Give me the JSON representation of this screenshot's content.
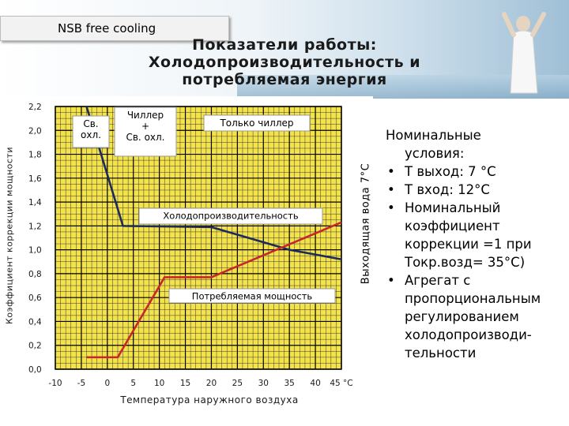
{
  "tab": {
    "label": "NSB free cooling"
  },
  "title": {
    "line1": "Показатели работы:",
    "line2": "Холодопроизводительность и",
    "line3": "потребляемая энергия"
  },
  "side_note": {
    "heading": "Номинальные",
    "heading2": "условия:",
    "bullets": [
      [
        "Т выход: 7 °C"
      ],
      [
        "Т вход: 12°C"
      ],
      [
        "Номинальный",
        "коэффициент",
        "коррекции =1 при",
        "Токр.возд= 35°C)"
      ],
      [
        "Агрегат с",
        "пропорциональным",
        "регулированием",
        "холодопроизводи-",
        "тельности"
      ]
    ]
  },
  "chart_data": {
    "type": "line",
    "xlabel": "Температура наружного воздуха",
    "ylabel": "Коэффициент коррекции мощности",
    "y2label": "Выходящая вода 7°С",
    "x_ticks": [
      "-10",
      "-5",
      "0",
      "5",
      "10",
      "15",
      "20",
      "25",
      "30",
      "35",
      "40",
      "45 °C"
    ],
    "x_tick_values": [
      -10,
      -5,
      0,
      5,
      10,
      15,
      20,
      25,
      30,
      35,
      40,
      45
    ],
    "y_ticks": [
      "0,0",
      "0,2",
      "0,4",
      "0,6",
      "0,8",
      "1,0",
      "1,2",
      "1,4",
      "1,6",
      "1,8",
      "2,0",
      "2,2"
    ],
    "y_tick_values": [
      0.0,
      0.2,
      0.4,
      0.6,
      0.8,
      1.0,
      1.2,
      1.4,
      1.6,
      1.8,
      2.0,
      2.2
    ],
    "xlim": [
      -10,
      45
    ],
    "ylim": [
      0,
      2.2
    ],
    "grid": true,
    "series": [
      {
        "name": "Холодопроизводительность",
        "color": "#1c2a5e",
        "x": [
          -4,
          3,
          20,
          35,
          45
        ],
        "y": [
          2.2,
          1.2,
          1.19,
          1.0,
          0.92
        ]
      },
      {
        "name": "Потребляемая мощность",
        "color": "#c8262a",
        "x": [
          -4,
          2,
          11,
          20,
          45
        ],
        "y": [
          0.1,
          0.1,
          0.77,
          0.77,
          1.23
        ]
      }
    ],
    "zones": [
      {
        "label": "Св.\nохл.",
        "x_start": -10,
        "x_end": 3
      },
      {
        "label": "Чиллер\n+\nСв. охл.",
        "x_start": 3,
        "x_end": 11
      },
      {
        "label": "Только чиллер",
        "x_start": 11,
        "x_end": 45
      }
    ],
    "annotations": [
      {
        "text": "Холодопроизводительность",
        "x": 20,
        "y": 1.34
      },
      {
        "text": "Потребляемая мощность",
        "x": 26,
        "y": 0.68
      }
    ]
  }
}
